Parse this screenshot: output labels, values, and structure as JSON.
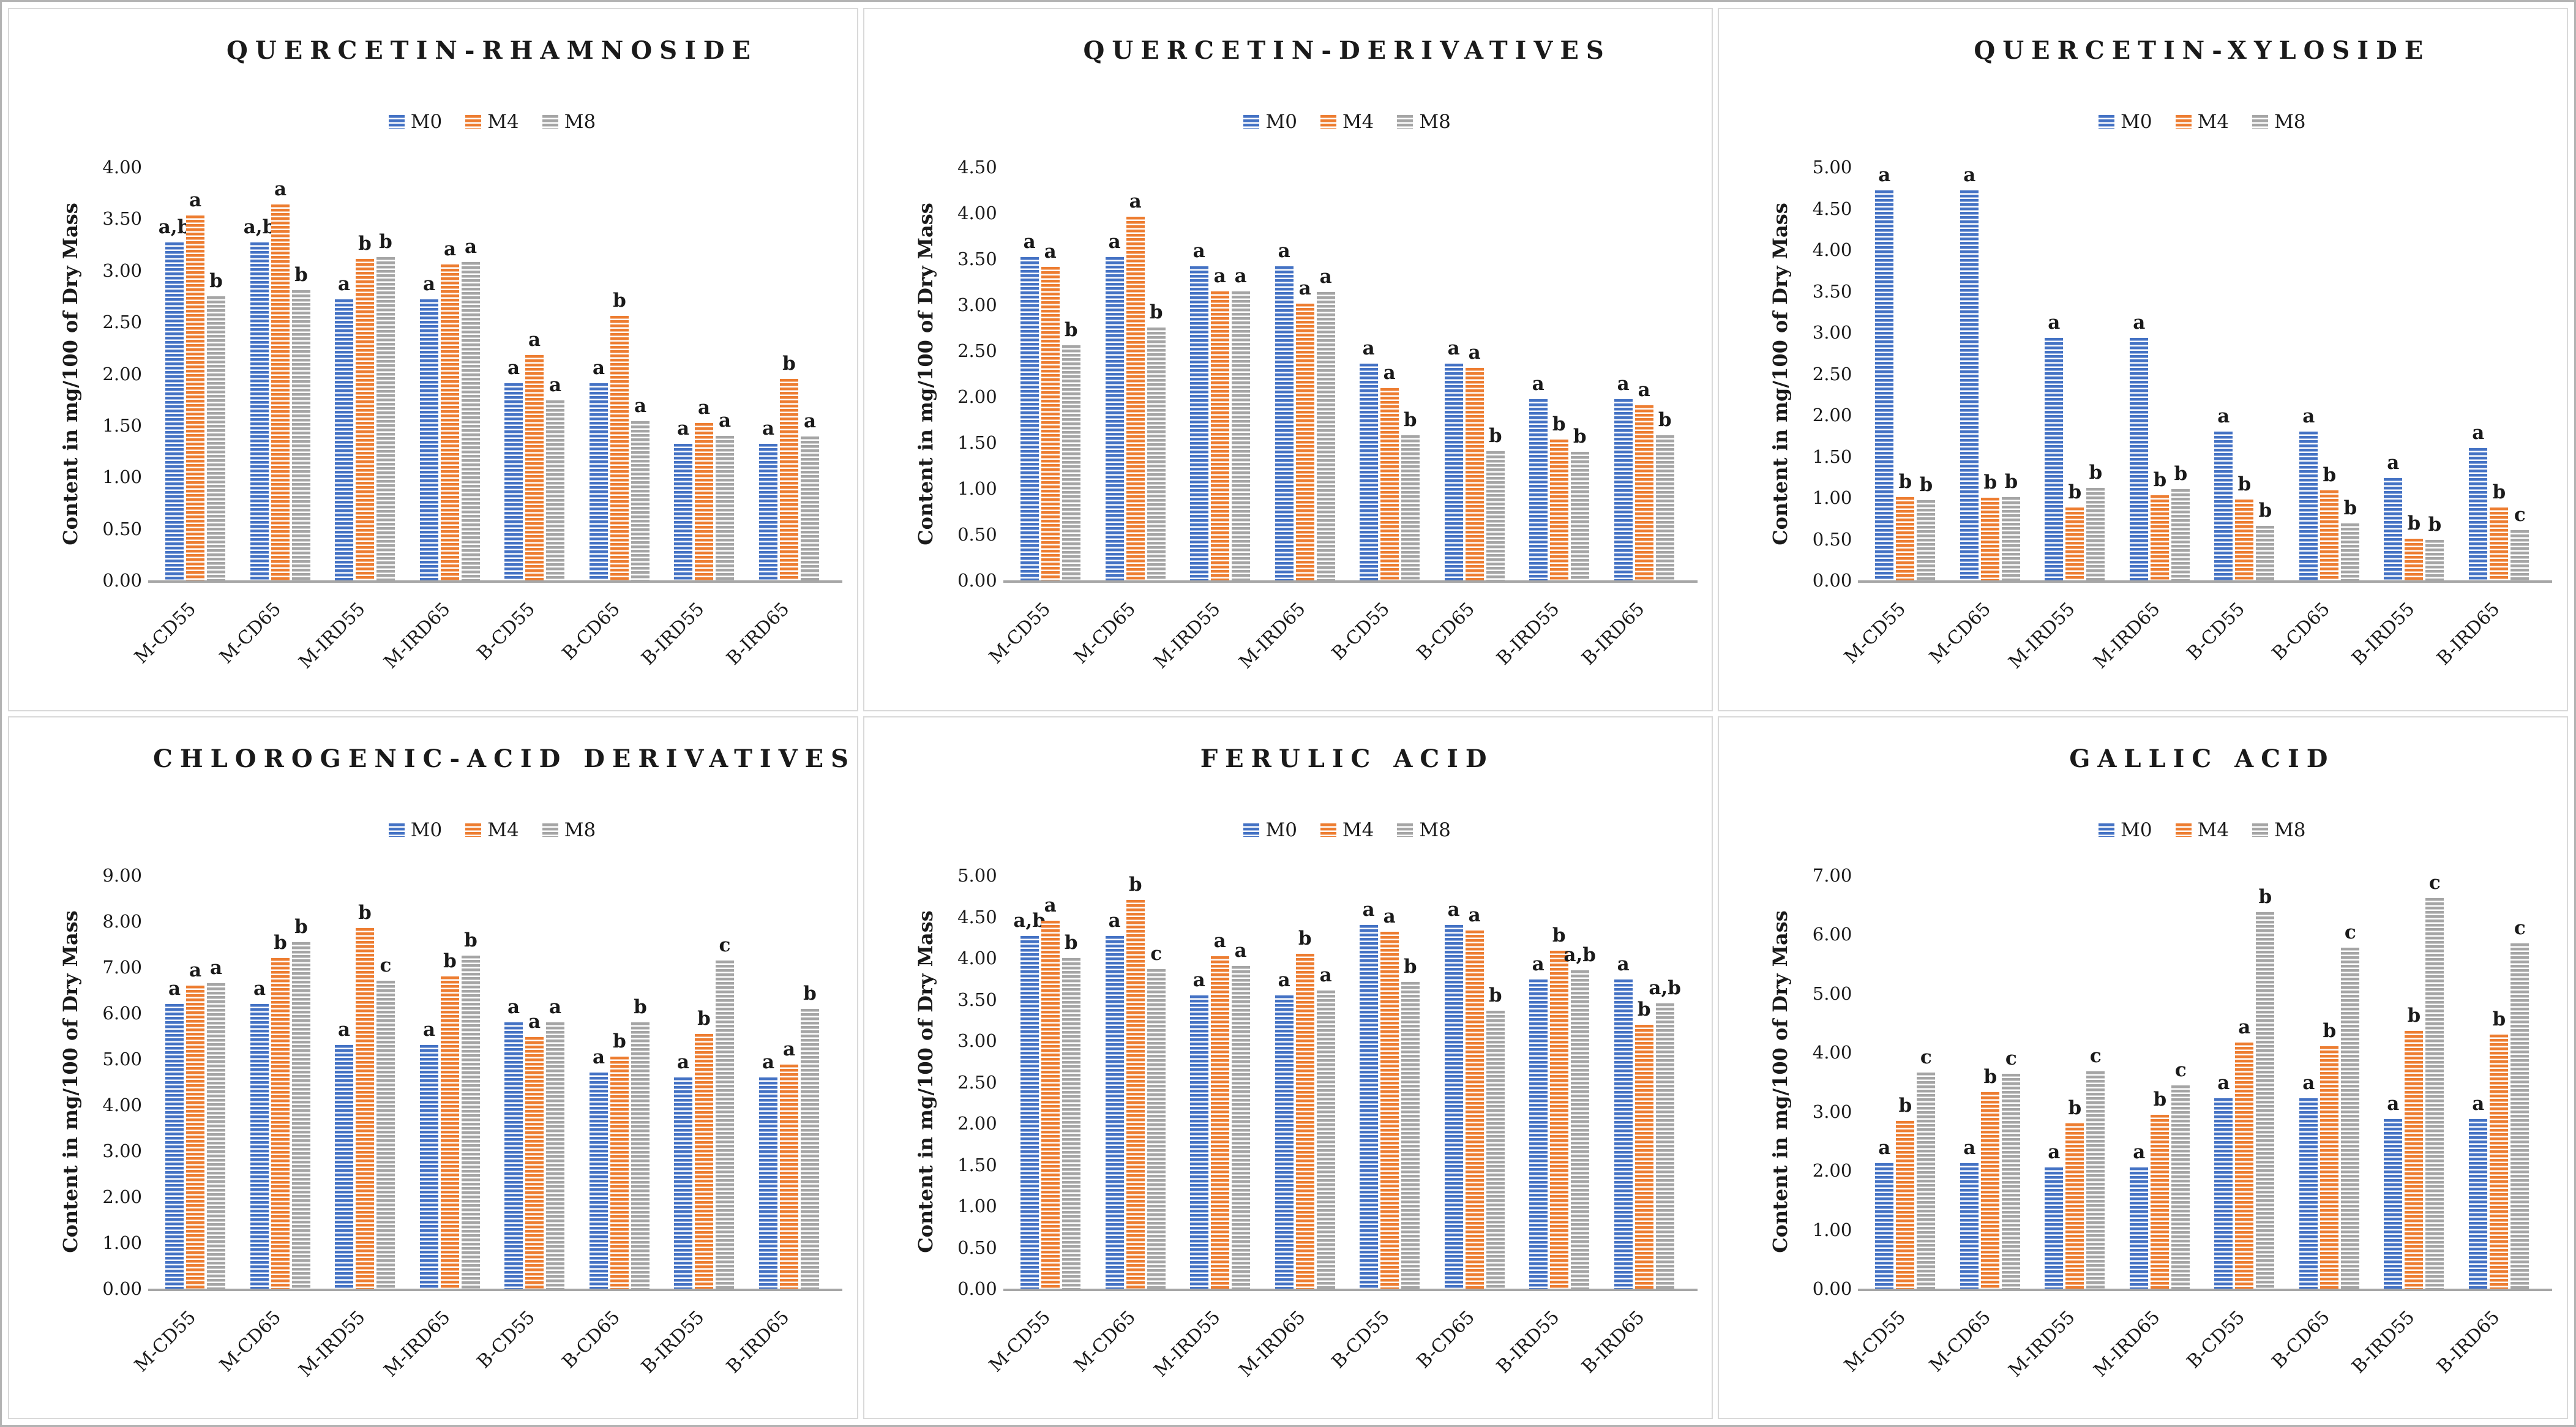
{
  "figure_title": "Six-panel phenolic compound content bar charts",
  "shared": {
    "ylabel": "Content in mg/100 of Dry Mass",
    "legend": [
      "M0",
      "M4",
      "M8"
    ],
    "colors": {
      "M0": "#4472C4",
      "M4": "#ED7D31",
      "M8": "#A5A5A5"
    },
    "categories": [
      "M-CD55",
      "M-CD65",
      "M-IRD55",
      "M-IRD65",
      "B-CD55",
      "B-CD65",
      "B-IRD55",
      "B-IRD65"
    ]
  },
  "chart_data": [
    {
      "type": "bar",
      "title": "QUERCETIN-RHAMNOSIDE",
      "ylabel": "Content in mg/100 of Dry Mass",
      "legend": [
        "M0",
        "M4",
        "M8"
      ],
      "legend_position": "top",
      "grid": false,
      "categories": [
        "M-CD55",
        "M-CD65",
        "M-IRD55",
        "M-IRD65",
        "B-CD55",
        "B-CD65",
        "B-IRD55",
        "B-IRD65"
      ],
      "ylim": [
        0,
        4.0
      ],
      "ytick_step": 0.5,
      "series": [
        {
          "name": "M0",
          "color": "#4472C4",
          "values": [
            3.27,
            3.27,
            2.72,
            2.72,
            1.91,
            1.91,
            1.32,
            1.32
          ],
          "letters": [
            "a,b",
            "a,b",
            "a",
            "a",
            "a",
            "a",
            "a",
            "a"
          ]
        },
        {
          "name": "M4",
          "color": "#ED7D31",
          "values": [
            3.53,
            3.64,
            3.11,
            3.06,
            2.18,
            2.56,
            1.52,
            1.95
          ],
          "letters": [
            "a",
            "a",
            "b",
            "a",
            "a",
            "b",
            "a",
            "b"
          ]
        },
        {
          "name": "M8",
          "color": "#A5A5A5",
          "values": [
            2.75,
            2.81,
            3.13,
            3.08,
            1.74,
            1.54,
            1.4,
            1.39
          ],
          "letters": [
            "b",
            "b",
            "b",
            "a",
            "a",
            "a",
            "a",
            "a"
          ]
        }
      ]
    },
    {
      "type": "bar",
      "title": "QUERCETIN-DERIVATIVES",
      "ylabel": "Content in mg/100 of Dry Mass",
      "legend": [
        "M0",
        "M4",
        "M8"
      ],
      "legend_position": "top",
      "grid": false,
      "categories": [
        "M-CD55",
        "M-CD65",
        "M-IRD55",
        "M-IRD65",
        "B-CD55",
        "B-CD65",
        "B-IRD55",
        "B-IRD65"
      ],
      "ylim": [
        0,
        4.5
      ],
      "ytick_step": 0.5,
      "series": [
        {
          "name": "M0",
          "color": "#4472C4",
          "values": [
            3.52,
            3.52,
            3.42,
            3.42,
            2.36,
            2.36,
            1.97,
            1.97
          ],
          "letters": [
            "a",
            "a",
            "a",
            "a",
            "a",
            "a",
            "a",
            "a"
          ]
        },
        {
          "name": "M4",
          "color": "#ED7D31",
          "values": [
            3.41,
            3.96,
            3.15,
            3.01,
            2.09,
            2.31,
            1.53,
            1.91
          ],
          "letters": [
            "a",
            "a",
            "a",
            "a",
            "a",
            "a",
            "b",
            "a"
          ]
        },
        {
          "name": "M8",
          "color": "#A5A5A5",
          "values": [
            2.56,
            2.75,
            3.15,
            3.14,
            1.58,
            1.41,
            1.4,
            1.58
          ],
          "letters": [
            "b",
            "b",
            "a",
            "a",
            "b",
            "b",
            "b",
            "b"
          ]
        }
      ]
    },
    {
      "type": "bar",
      "title": "QUERCETIN-XYLOSIDE",
      "ylabel": "Content in mg/100 of Dry Mass",
      "legend": [
        "M0",
        "M4",
        "M8"
      ],
      "legend_position": "top",
      "grid": false,
      "categories": [
        "M-CD55",
        "M-CD65",
        "M-IRD55",
        "M-IRD65",
        "B-CD55",
        "B-CD65",
        "B-IRD55",
        "B-IRD65"
      ],
      "ylim": [
        0,
        5.0
      ],
      "ytick_step": 0.5,
      "series": [
        {
          "name": "M0",
          "color": "#4472C4",
          "values": [
            4.72,
            4.72,
            2.93,
            2.93,
            1.8,
            1.8,
            1.24,
            1.6
          ],
          "letters": [
            "a",
            "a",
            "a",
            "a",
            "a",
            "a",
            "a",
            "a"
          ]
        },
        {
          "name": "M4",
          "color": "#ED7D31",
          "values": [
            1.01,
            1.0,
            0.88,
            1.03,
            0.98,
            1.09,
            0.5,
            0.88
          ],
          "letters": [
            "b",
            "b",
            "b",
            "b",
            "b",
            "b",
            "b",
            "b"
          ]
        },
        {
          "name": "M8",
          "color": "#A5A5A5",
          "values": [
            0.97,
            1.01,
            1.12,
            1.1,
            0.66,
            0.69,
            0.49,
            0.61
          ],
          "letters": [
            "b",
            "b",
            "b",
            "b",
            "b",
            "b",
            "b",
            "c"
          ]
        }
      ]
    },
    {
      "type": "bar",
      "title": "CHLOROGENIC-ACID DERIVATIVES",
      "ylabel": "Content in mg/100 of Dry Mass",
      "legend": [
        "M0",
        "M4",
        "M8"
      ],
      "legend_position": "top",
      "grid": false,
      "categories": [
        "M-CD55",
        "M-CD65",
        "M-IRD55",
        "M-IRD65",
        "B-CD55",
        "B-CD65",
        "B-IRD55",
        "B-IRD65"
      ],
      "ylim": [
        0,
        9.0
      ],
      "ytick_step": 1.0,
      "series": [
        {
          "name": "M0",
          "color": "#4472C4",
          "values": [
            6.2,
            6.2,
            5.3,
            5.3,
            5.8,
            4.7,
            4.6,
            4.6
          ],
          "letters": [
            "a",
            "a",
            "a",
            "a",
            "a",
            "a",
            "a",
            "a"
          ]
        },
        {
          "name": "M4",
          "color": "#ED7D31",
          "values": [
            6.6,
            7.2,
            7.85,
            6.8,
            5.48,
            5.05,
            5.55,
            4.88
          ],
          "letters": [
            "a",
            "b",
            "b",
            "b",
            "a",
            "b",
            "b",
            "a"
          ]
        },
        {
          "name": "M8",
          "color": "#A5A5A5",
          "values": [
            6.65,
            7.55,
            6.7,
            7.25,
            5.8,
            5.8,
            7.15,
            6.1
          ],
          "letters": [
            "a",
            "b",
            "c",
            "b",
            "a",
            "b",
            "c",
            "b"
          ]
        }
      ]
    },
    {
      "type": "bar",
      "title": "FERULIC ACID",
      "ylabel": "Content in mg/100 of Dry Mass",
      "legend": [
        "M0",
        "M4",
        "M8"
      ],
      "legend_position": "top",
      "grid": false,
      "categories": [
        "M-CD55",
        "M-CD65",
        "M-IRD55",
        "M-IRD65",
        "B-CD55",
        "B-CD65",
        "B-IRD55",
        "B-IRD65"
      ],
      "ylim": [
        0,
        5.0
      ],
      "ytick_step": 0.5,
      "series": [
        {
          "name": "M0",
          "color": "#4472C4",
          "values": [
            4.27,
            4.27,
            3.55,
            3.55,
            4.4,
            4.4,
            3.74,
            3.74
          ],
          "letters": [
            "a,b",
            "a",
            "a",
            "a",
            "a",
            "a",
            "a",
            "a"
          ]
        },
        {
          "name": "M4",
          "color": "#ED7D31",
          "values": [
            4.45,
            4.7,
            4.02,
            4.05,
            4.32,
            4.33,
            4.09,
            3.19
          ],
          "letters": [
            "a",
            "b",
            "a",
            "b",
            "a",
            "a",
            "b",
            "b"
          ]
        },
        {
          "name": "M8",
          "color": "#A5A5A5",
          "values": [
            4.0,
            3.87,
            3.9,
            3.61,
            3.71,
            3.36,
            3.85,
            3.45
          ],
          "letters": [
            "b",
            "c",
            "a",
            "a",
            "b",
            "b",
            "a,b",
            "a,b"
          ]
        }
      ]
    },
    {
      "type": "bar",
      "title": "GALLIC ACID",
      "ylabel": "Content in mg/100 of Dry Mass",
      "legend": [
        "M0",
        "M4",
        "M8"
      ],
      "legend_position": "top",
      "grid": false,
      "categories": [
        "M-CD55",
        "M-CD65",
        "M-IRD55",
        "M-IRD65",
        "B-CD55",
        "B-CD65",
        "B-IRD55",
        "B-IRD65"
      ],
      "ylim": [
        0,
        7.0
      ],
      "ytick_step": 1.0,
      "series": [
        {
          "name": "M0",
          "color": "#4472C4",
          "values": [
            2.13,
            2.13,
            2.05,
            2.05,
            3.22,
            3.22,
            2.87,
            2.87
          ],
          "letters": [
            "a",
            "a",
            "a",
            "a",
            "a",
            "a",
            "a",
            "a"
          ]
        },
        {
          "name": "M4",
          "color": "#ED7D31",
          "values": [
            2.84,
            3.33,
            2.8,
            2.95,
            4.17,
            4.11,
            4.37,
            4.3
          ],
          "letters": [
            "b",
            "b",
            "b",
            "b",
            "a",
            "b",
            "b",
            "b"
          ]
        },
        {
          "name": "M8",
          "color": "#A5A5A5",
          "values": [
            3.66,
            3.64,
            3.68,
            3.44,
            6.38,
            5.78,
            6.62,
            5.85
          ],
          "letters": [
            "c",
            "c",
            "c",
            "c",
            "b",
            "c",
            "c",
            "c"
          ]
        }
      ]
    }
  ]
}
